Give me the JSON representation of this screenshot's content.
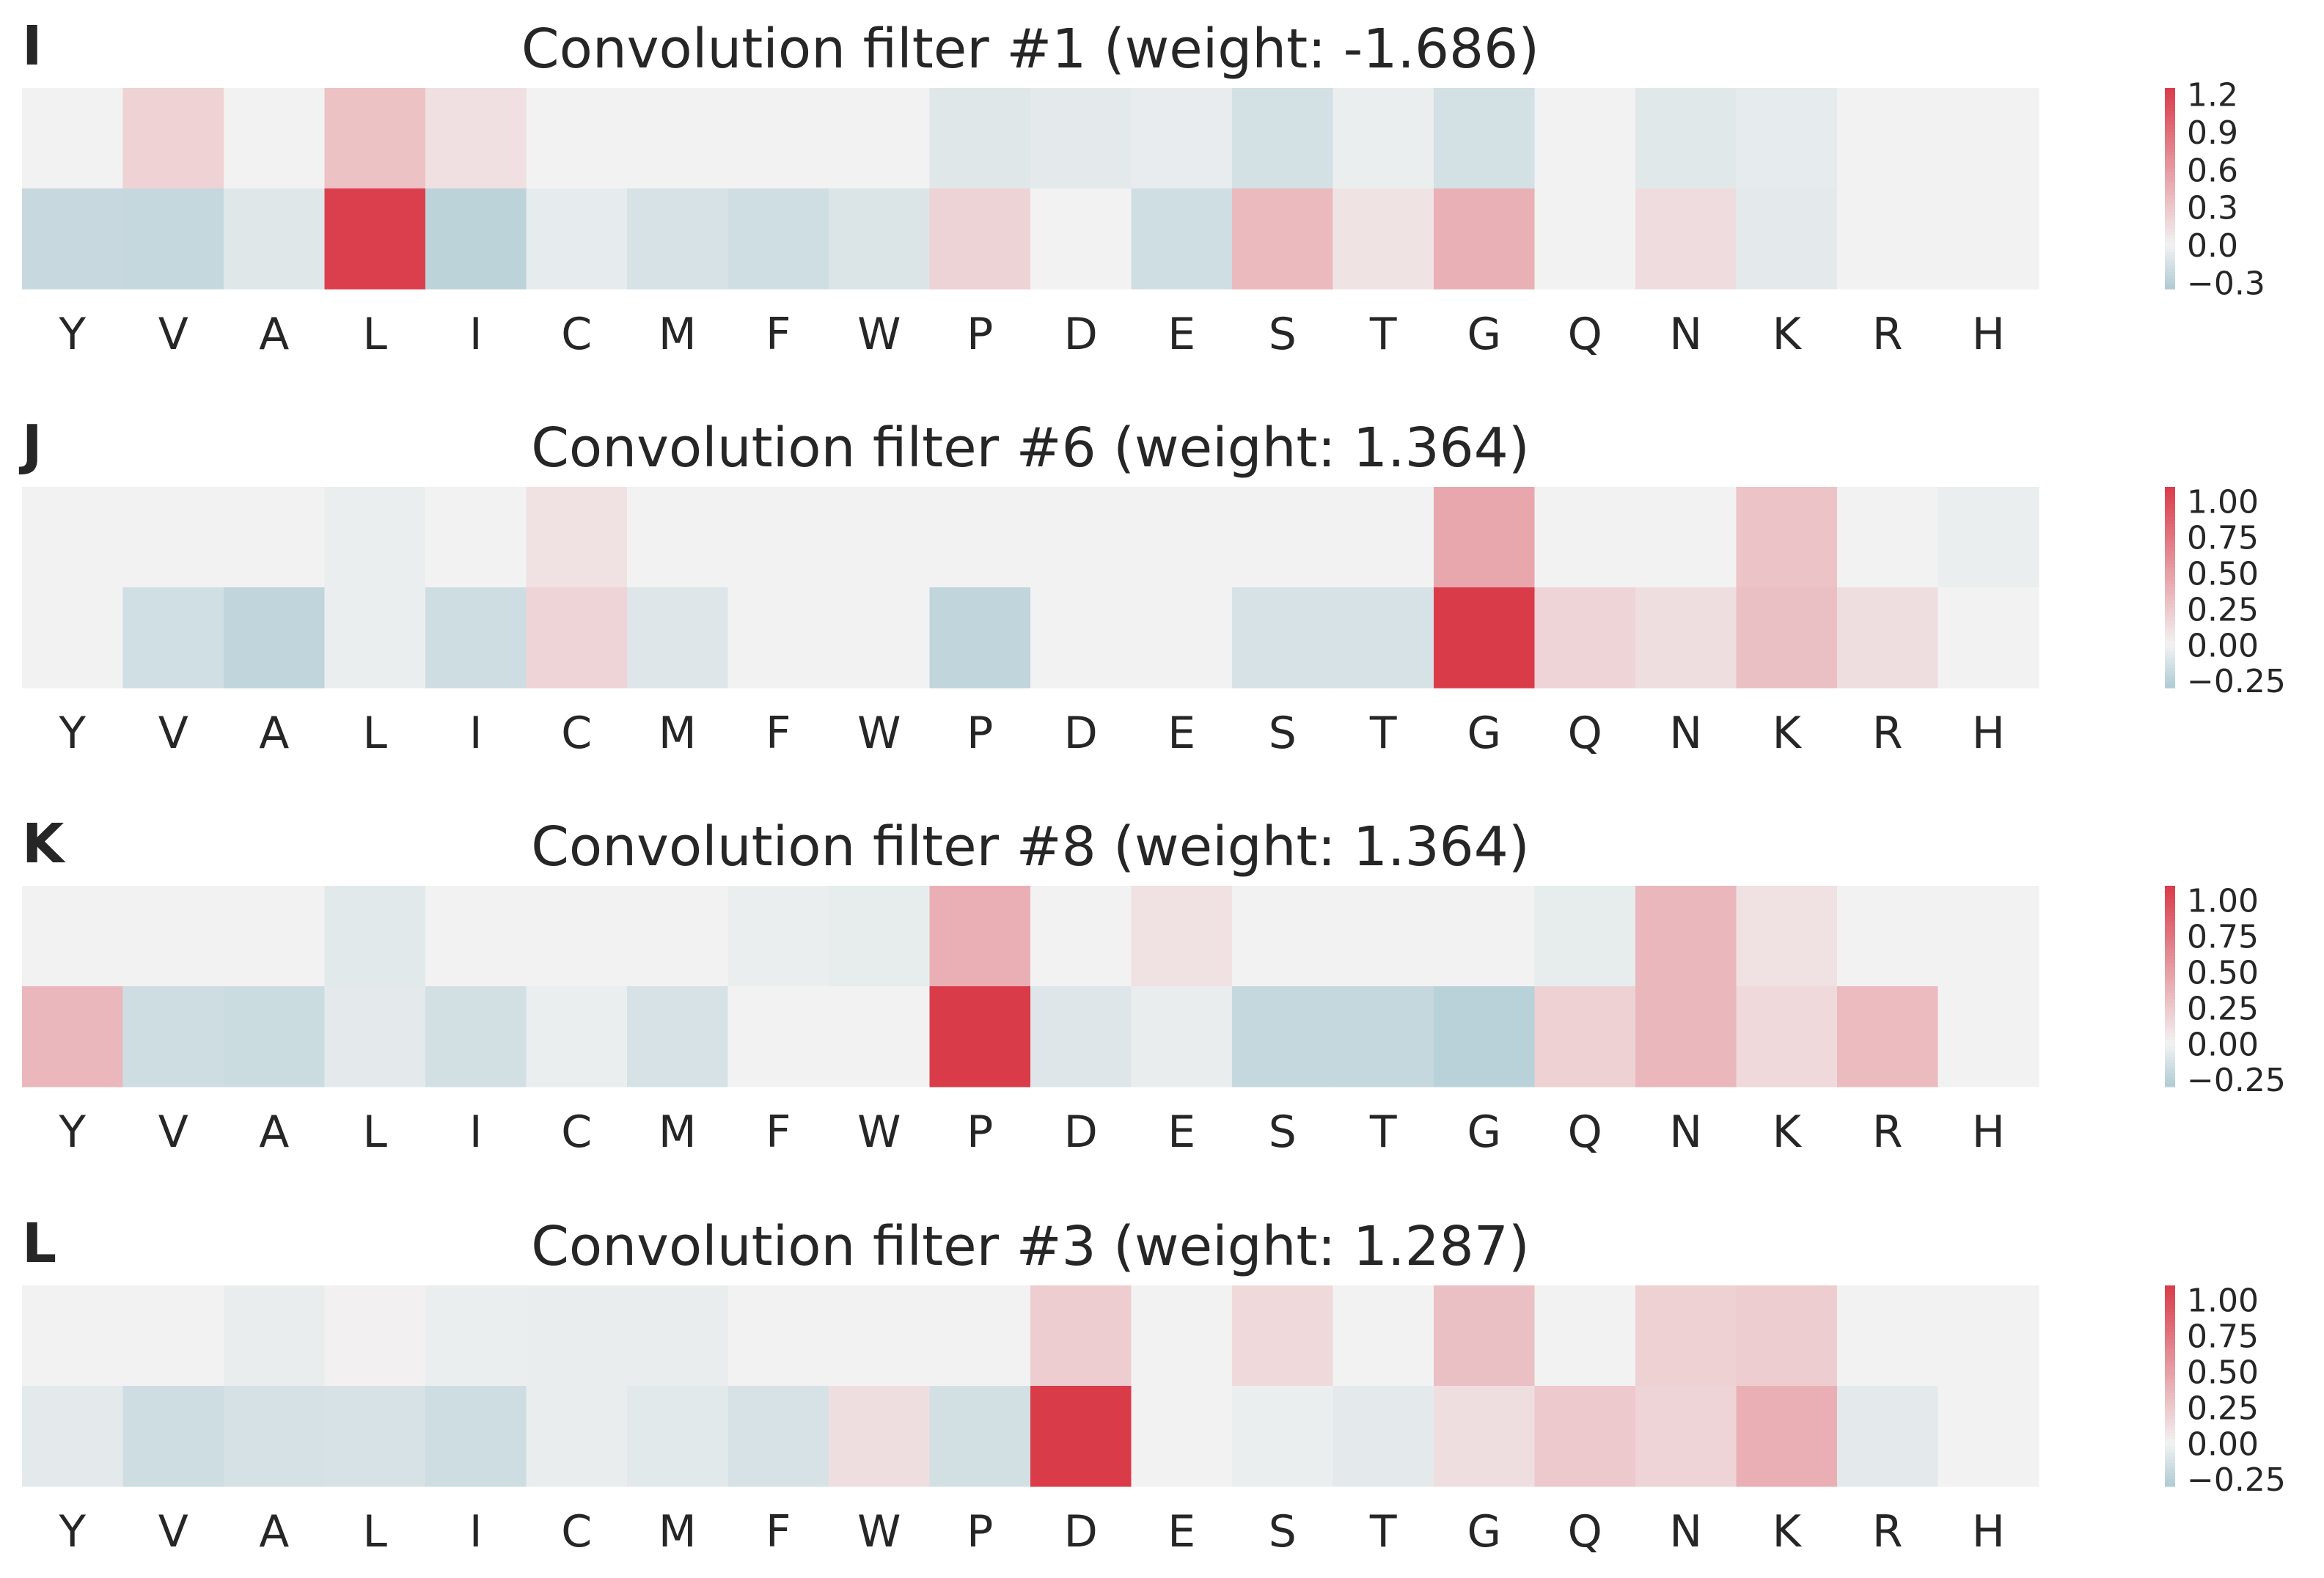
{
  "colors": {
    "neg": "#aecbd4",
    "mid": "#f2f2f2",
    "pos": "#da3b49"
  },
  "chart_data": [
    {
      "type": "heatmap",
      "panel": "I",
      "title": "Convolution filter #1   (weight: -1.686)",
      "categories": [
        "Y",
        "V",
        "A",
        "L",
        "I",
        "C",
        "M",
        "F",
        "W",
        "P",
        "D",
        "E",
        "S",
        "T",
        "G",
        "Q",
        "N",
        "K",
        "R",
        "H"
      ],
      "rows": [
        [
          0.0,
          0.22,
          0.0,
          0.33,
          0.12,
          0.0,
          0.0,
          0.0,
          0.0,
          -0.1,
          -0.07,
          -0.05,
          -0.16,
          -0.04,
          -0.16,
          0.0,
          -0.09,
          -0.06,
          0.0,
          0.0
        ],
        [
          -0.22,
          -0.23,
          -0.1,
          1.22,
          -0.28,
          -0.06,
          -0.14,
          -0.18,
          -0.12,
          0.21,
          0.0,
          -0.18,
          0.38,
          0.1,
          0.45,
          0.0,
          0.15,
          -0.07,
          0.0,
          0.0
        ]
      ],
      "colorbar_ticks": [
        "1.2",
        "0.9",
        "0.6",
        "0.3",
        "0.0",
        "−0.3"
      ],
      "colorbar_values": [
        1.2,
        0.9,
        0.6,
        0.3,
        0.0,
        -0.3
      ],
      "vmin": -0.35,
      "vmax": 1.25
    },
    {
      "type": "heatmap",
      "panel": "J",
      "title": "Convolution filter #6   (weight: 1.364)",
      "categories": [
        "Y",
        "V",
        "A",
        "L",
        "I",
        "C",
        "M",
        "F",
        "W",
        "P",
        "D",
        "E",
        "S",
        "T",
        "G",
        "Q",
        "N",
        "K",
        "R",
        "H"
      ],
      "rows": [
        [
          0.0,
          0.0,
          0.0,
          -0.03,
          0.0,
          0.1,
          0.0,
          0.0,
          0.0,
          0.0,
          0.0,
          0.0,
          0.0,
          0.0,
          0.45,
          0.0,
          0.0,
          0.28,
          0.0,
          -0.03
        ],
        [
          0.0,
          -0.15,
          -0.22,
          -0.03,
          -0.16,
          0.18,
          -0.09,
          0.0,
          0.0,
          -0.22,
          0.0,
          0.0,
          -0.12,
          -0.12,
          1.1,
          0.18,
          0.12,
          0.3,
          0.12,
          0.0
        ]
      ],
      "colorbar_ticks": [
        "1.00",
        "0.75",
        "0.50",
        "0.25",
        "0.00",
        "−0.25"
      ],
      "colorbar_values": [
        1.0,
        0.75,
        0.5,
        0.25,
        0.0,
        -0.25
      ],
      "vmin": -0.3,
      "vmax": 1.1
    },
    {
      "type": "heatmap",
      "panel": "K",
      "title": "Convolution filter #8   (weight: 1.364)",
      "categories": [
        "Y",
        "V",
        "A",
        "L",
        "I",
        "C",
        "M",
        "F",
        "W",
        "P",
        "D",
        "E",
        "S",
        "T",
        "G",
        "Q",
        "N",
        "K",
        "R",
        "H"
      ],
      "rows": [
        [
          0.0,
          0.0,
          0.0,
          -0.07,
          0.0,
          0.0,
          0.0,
          -0.03,
          -0.05,
          0.4,
          0.0,
          0.1,
          0.0,
          0.0,
          0.0,
          -0.05,
          0.35,
          0.1,
          0.0,
          0.0
        ],
        [
          0.35,
          -0.16,
          -0.17,
          -0.06,
          -0.14,
          -0.03,
          -0.12,
          0.0,
          0.0,
          1.1,
          -0.09,
          -0.04,
          -0.2,
          -0.2,
          -0.25,
          0.2,
          0.35,
          0.15,
          0.33,
          0.0
        ]
      ],
      "colorbar_ticks": [
        "1.00",
        "0.75",
        "0.50",
        "0.25",
        "0.00",
        "−0.25"
      ],
      "colorbar_values": [
        1.0,
        0.75,
        0.5,
        0.25,
        0.0,
        -0.25
      ],
      "vmin": -0.3,
      "vmax": 1.1
    },
    {
      "type": "heatmap",
      "panel": "L",
      "title": "Convolution filter #3   (weight: 1.287)",
      "categories": [
        "Y",
        "V",
        "A",
        "L",
        "I",
        "C",
        "M",
        "F",
        "W",
        "P",
        "D",
        "E",
        "S",
        "T",
        "G",
        "Q",
        "N",
        "K",
        "R",
        "H"
      ],
      "rows": [
        [
          0.0,
          0.0,
          -0.04,
          0.01,
          -0.03,
          -0.04,
          -0.04,
          0.0,
          0.0,
          0.0,
          0.22,
          0.0,
          0.15,
          0.0,
          0.3,
          0.0,
          0.2,
          0.22,
          0.0,
          0.0
        ],
        [
          -0.06,
          -0.16,
          -0.13,
          -0.12,
          -0.16,
          -0.04,
          -0.07,
          -0.12,
          0.12,
          -0.14,
          1.1,
          0.0,
          -0.03,
          -0.06,
          0.12,
          0.25,
          0.18,
          0.4,
          -0.06,
          0.0
        ]
      ],
      "colorbar_ticks": [
        "1.00",
        "0.75",
        "0.50",
        "0.25",
        "0.00",
        "−0.25"
      ],
      "colorbar_values": [
        1.0,
        0.75,
        0.5,
        0.25,
        0.0,
        -0.25
      ],
      "vmin": -0.3,
      "vmax": 1.1
    }
  ]
}
